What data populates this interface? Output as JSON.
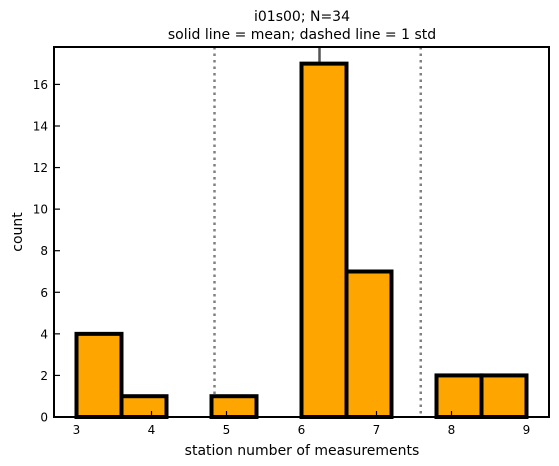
{
  "chart_data": {
    "type": "bar",
    "title_line1": "i01s00; N=34",
    "title_line2": "solid line = mean; dashed line = 1 std",
    "xlabel": "station number of measurements",
    "ylabel": "count",
    "xlim": [
      2.7,
      9.3
    ],
    "ylim": [
      0,
      17.8
    ],
    "x_ticks": [
      3,
      4,
      5,
      6,
      7,
      8,
      9
    ],
    "y_ticks": [
      0,
      2,
      4,
      6,
      8,
      10,
      12,
      14,
      16
    ],
    "bins": [
      {
        "x0": 3.0,
        "x1": 3.6,
        "count": 4
      },
      {
        "x0": 3.6,
        "x1": 4.2,
        "count": 1
      },
      {
        "x0": 4.2,
        "x1": 4.8,
        "count": 0
      },
      {
        "x0": 4.8,
        "x1": 5.4,
        "count": 1
      },
      {
        "x0": 5.4,
        "x1": 6.0,
        "count": 0
      },
      {
        "x0": 6.0,
        "x1": 6.6,
        "count": 17
      },
      {
        "x0": 6.6,
        "x1": 7.2,
        "count": 7
      },
      {
        "x0": 7.2,
        "x1": 7.8,
        "count": 0
      },
      {
        "x0": 7.8,
        "x1": 8.4,
        "count": 2
      },
      {
        "x0": 8.4,
        "x1": 9.0,
        "count": 2
      }
    ],
    "mean": 6.24,
    "std_lines": [
      4.84,
      7.59
    ],
    "bar_color": "#ffa500",
    "edge_color": "#000000",
    "mean_line_color": "#555555",
    "std_line_color": "#808080"
  }
}
